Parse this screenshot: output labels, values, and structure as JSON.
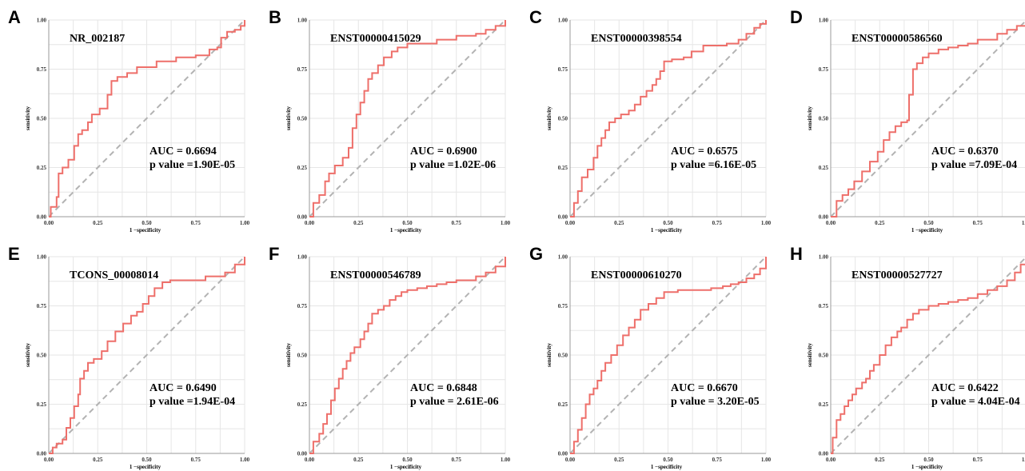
{
  "figure": {
    "xlabel": "1 −specificity",
    "ylabel": "sensitivity",
    "xlim": [
      0,
      1
    ],
    "ylim": [
      0,
      1
    ],
    "ticks": [
      "0.00",
      "0.25",
      "0.50",
      "0.75",
      "1.00"
    ],
    "colors": {
      "roc": "#ee6f6a",
      "diagonal": "#b3b3b3",
      "grid": "#e6e6e6"
    }
  },
  "chart_data": [
    {
      "type": "line",
      "panel": "A",
      "title": "NR_002187",
      "auc_text": "AUC = 0.6694",
      "p_text": "p value =1.90E-05",
      "xlabel": "1 −specificity",
      "ylabel": "sensitivity",
      "xlim": [
        0,
        1
      ],
      "ylim": [
        0,
        1
      ],
      "series": [
        {
          "x": [
            0.0,
            0.01,
            0.04,
            0.05,
            0.07,
            0.1,
            0.13,
            0.15,
            0.17,
            0.2,
            0.22,
            0.24,
            0.26,
            0.3,
            0.32,
            0.35,
            0.4,
            0.45,
            0.55,
            0.65,
            0.75,
            0.82,
            0.86,
            0.88,
            0.91,
            0.95,
            0.98,
            1.0
          ],
          "y": [
            0.0,
            0.05,
            0.1,
            0.22,
            0.25,
            0.29,
            0.36,
            0.42,
            0.44,
            0.48,
            0.52,
            0.52,
            0.55,
            0.62,
            0.69,
            0.71,
            0.73,
            0.76,
            0.79,
            0.81,
            0.82,
            0.85,
            0.86,
            0.91,
            0.94,
            0.95,
            0.97,
            1.0
          ]
        }
      ]
    },
    {
      "type": "line",
      "panel": "B",
      "title": "ENST00000415029",
      "auc_text": "AUC = 0.6900",
      "p_text": "p value =1.02E-06",
      "xlabel": "1 −specificity",
      "ylabel": "sensitivity",
      "xlim": [
        0,
        1
      ],
      "ylim": [
        0,
        1
      ],
      "series": [
        {
          "x": [
            0.0,
            0.02,
            0.05,
            0.08,
            0.1,
            0.13,
            0.17,
            0.2,
            0.22,
            0.24,
            0.26,
            0.28,
            0.3,
            0.32,
            0.35,
            0.38,
            0.42,
            0.45,
            0.5,
            0.55,
            0.65,
            0.75,
            0.85,
            0.9,
            0.95,
            1.0
          ],
          "y": [
            0.0,
            0.07,
            0.11,
            0.18,
            0.22,
            0.26,
            0.3,
            0.35,
            0.45,
            0.52,
            0.58,
            0.64,
            0.7,
            0.73,
            0.77,
            0.81,
            0.84,
            0.86,
            0.88,
            0.88,
            0.9,
            0.92,
            0.93,
            0.95,
            0.97,
            1.0
          ]
        }
      ]
    },
    {
      "type": "line",
      "panel": "C",
      "title": "ENST00000398554",
      "auc_text": "AUC = 0.6575",
      "p_text": "p value =6.16E-05",
      "xlabel": "1 −specificity",
      "ylabel": "sensitivity",
      "xlim": [
        0,
        1
      ],
      "ylim": [
        0,
        1
      ],
      "series": [
        {
          "x": [
            0.0,
            0.02,
            0.04,
            0.06,
            0.09,
            0.12,
            0.14,
            0.16,
            0.18,
            0.2,
            0.23,
            0.26,
            0.3,
            0.33,
            0.36,
            0.39,
            0.42,
            0.44,
            0.46,
            0.48,
            0.52,
            0.58,
            0.62,
            0.68,
            0.74,
            0.8,
            0.86,
            0.9,
            0.94,
            0.97,
            1.0
          ],
          "y": [
            0.0,
            0.07,
            0.13,
            0.2,
            0.24,
            0.3,
            0.36,
            0.4,
            0.44,
            0.48,
            0.5,
            0.52,
            0.54,
            0.57,
            0.61,
            0.64,
            0.67,
            0.7,
            0.74,
            0.79,
            0.8,
            0.81,
            0.84,
            0.87,
            0.87,
            0.88,
            0.9,
            0.93,
            0.96,
            0.98,
            1.0
          ]
        }
      ]
    },
    {
      "type": "line",
      "panel": "D",
      "title": "ENST00000586560",
      "auc_text": "AUC = 0.6370",
      "p_text": "p value =7.09E-04",
      "xlabel": "1 −specificity",
      "ylabel": "sensitivity",
      "xlim": [
        0,
        1
      ],
      "ylim": [
        0,
        1
      ],
      "series": [
        {
          "x": [
            0.0,
            0.03,
            0.06,
            0.09,
            0.12,
            0.16,
            0.2,
            0.24,
            0.27,
            0.3,
            0.33,
            0.36,
            0.39,
            0.4,
            0.42,
            0.44,
            0.47,
            0.5,
            0.55,
            0.6,
            0.65,
            0.7,
            0.75,
            0.85,
            0.9,
            0.95,
            1.0
          ],
          "y": [
            0.0,
            0.08,
            0.11,
            0.14,
            0.18,
            0.23,
            0.28,
            0.33,
            0.39,
            0.43,
            0.46,
            0.48,
            0.49,
            0.62,
            0.75,
            0.78,
            0.81,
            0.83,
            0.85,
            0.86,
            0.87,
            0.88,
            0.9,
            0.93,
            0.95,
            0.97,
            0.99
          ]
        }
      ]
    },
    {
      "type": "line",
      "panel": "E",
      "title": "TCONS_00008014",
      "auc_text": "AUC = 0.6490",
      "p_text": "p value =1.94E-04",
      "xlabel": "1 −specificity",
      "ylabel": "sensitivity",
      "xlim": [
        0,
        1
      ],
      "ylim": [
        0,
        1
      ],
      "series": [
        {
          "x": [
            0.0,
            0.02,
            0.04,
            0.07,
            0.09,
            0.11,
            0.13,
            0.15,
            0.16,
            0.18,
            0.2,
            0.23,
            0.27,
            0.3,
            0.34,
            0.38,
            0.42,
            0.45,
            0.48,
            0.51,
            0.54,
            0.58,
            0.62,
            0.7,
            0.8,
            0.9,
            0.95,
            1.0
          ],
          "y": [
            0.0,
            0.03,
            0.05,
            0.07,
            0.13,
            0.18,
            0.24,
            0.3,
            0.38,
            0.42,
            0.46,
            0.48,
            0.52,
            0.57,
            0.62,
            0.66,
            0.7,
            0.72,
            0.76,
            0.8,
            0.84,
            0.87,
            0.88,
            0.88,
            0.9,
            0.92,
            0.96,
            1.0
          ]
        }
      ]
    },
    {
      "type": "line",
      "panel": "F",
      "title": "ENST00000546789",
      "auc_text": "AUC = 0.6848",
      "p_text": "p value = 2.61E-06",
      "xlabel": "1 −specificity",
      "ylabel": "sensitivity",
      "xlim": [
        0,
        1
      ],
      "ylim": [
        0,
        1
      ],
      "series": [
        {
          "x": [
            0.0,
            0.02,
            0.05,
            0.07,
            0.09,
            0.11,
            0.13,
            0.15,
            0.17,
            0.19,
            0.21,
            0.23,
            0.26,
            0.28,
            0.3,
            0.32,
            0.35,
            0.38,
            0.41,
            0.44,
            0.47,
            0.5,
            0.55,
            0.6,
            0.65,
            0.7,
            0.75,
            0.8,
            0.85,
            0.9,
            0.95,
            1.0
          ],
          "y": [
            0.0,
            0.06,
            0.1,
            0.15,
            0.2,
            0.27,
            0.33,
            0.38,
            0.43,
            0.47,
            0.51,
            0.54,
            0.58,
            0.62,
            0.66,
            0.71,
            0.73,
            0.75,
            0.78,
            0.8,
            0.82,
            0.83,
            0.84,
            0.85,
            0.86,
            0.87,
            0.88,
            0.88,
            0.9,
            0.92,
            0.95,
            1.0
          ]
        }
      ]
    },
    {
      "type": "line",
      "panel": "G",
      "title": "ENST00000610270",
      "auc_text": "AUC = 0.6670",
      "p_text": "p value = 3.20E-05",
      "xlabel": "1 −specificity",
      "ylabel": "sensitivity",
      "xlim": [
        0,
        1
      ],
      "ylim": [
        0,
        1
      ],
      "series": [
        {
          "x": [
            0.0,
            0.02,
            0.04,
            0.06,
            0.08,
            0.1,
            0.12,
            0.14,
            0.16,
            0.18,
            0.21,
            0.24,
            0.27,
            0.3,
            0.33,
            0.36,
            0.4,
            0.44,
            0.48,
            0.55,
            0.65,
            0.72,
            0.78,
            0.82,
            0.86,
            0.9,
            0.94,
            0.97,
            1.0
          ],
          "y": [
            0.0,
            0.06,
            0.12,
            0.18,
            0.25,
            0.3,
            0.33,
            0.37,
            0.42,
            0.46,
            0.5,
            0.55,
            0.6,
            0.64,
            0.68,
            0.73,
            0.76,
            0.79,
            0.82,
            0.83,
            0.83,
            0.84,
            0.85,
            0.86,
            0.87,
            0.89,
            0.91,
            0.94,
            1.0
          ]
        }
      ]
    },
    {
      "type": "line",
      "panel": "H",
      "title": "ENST00000527727",
      "auc_text": "AUC = 0.6422",
      "p_text": "p value = 4.04E-04",
      "xlabel": "1 −specificity",
      "ylabel": "sensitivity",
      "xlim": [
        0,
        1
      ],
      "ylim": [
        0,
        1
      ],
      "series": [
        {
          "x": [
            0.0,
            0.01,
            0.03,
            0.05,
            0.07,
            0.09,
            0.11,
            0.13,
            0.16,
            0.18,
            0.2,
            0.22,
            0.25,
            0.28,
            0.31,
            0.34,
            0.36,
            0.39,
            0.42,
            0.45,
            0.5,
            0.55,
            0.6,
            0.65,
            0.7,
            0.75,
            0.8,
            0.85,
            0.9,
            0.94,
            0.97,
            1.0
          ],
          "y": [
            0.0,
            0.08,
            0.17,
            0.2,
            0.24,
            0.27,
            0.3,
            0.33,
            0.36,
            0.38,
            0.42,
            0.45,
            0.5,
            0.55,
            0.59,
            0.62,
            0.64,
            0.68,
            0.71,
            0.73,
            0.75,
            0.76,
            0.77,
            0.78,
            0.79,
            0.81,
            0.83,
            0.85,
            0.88,
            0.92,
            0.96,
            1.0
          ]
        }
      ]
    }
  ]
}
